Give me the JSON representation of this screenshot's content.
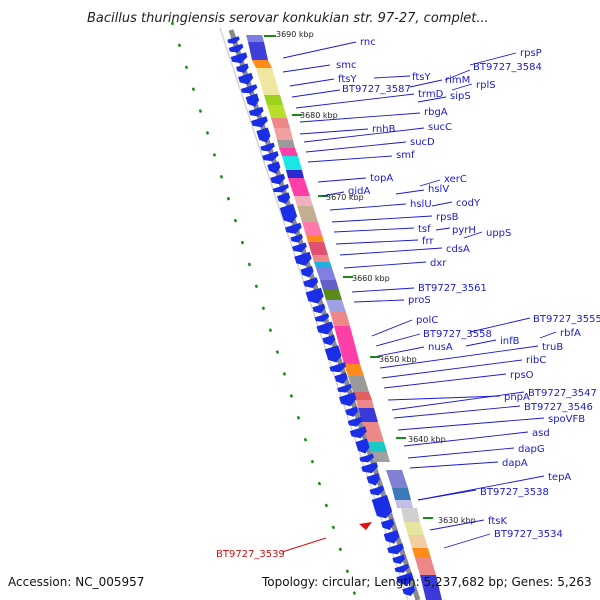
{
  "title": "Bacillus thuringiensis serovar konkukian str. 97-27, complet...",
  "footer": {
    "accession": "Accession: NC_005957",
    "topology": "Topology: circular; Length: 5,237,682 bp; Genes: 5,263"
  },
  "colors": {
    "gene_label": "#1a1ad0",
    "highlight": "#cc1111",
    "tick": "#1a8a1a",
    "backbone": "#888888",
    "arrow": "#1a2ee6"
  },
  "kbp_ticks": [
    "3690 kbp",
    "3680 kbp",
    "3670 kbp",
    "3660 kbp",
    "3650 kbp",
    "3640 kbp",
    "3630 kbp"
  ],
  "genes": [
    "rnc",
    "smc",
    "ftsY",
    "ftsY",
    "BT9727_3587",
    "rimM",
    "rpsP",
    "BT9727_3584",
    "rplS",
    "trmD",
    "sipS",
    "rbgA",
    "rnhB",
    "sucC",
    "sucD",
    "smf",
    "topA",
    "xerC",
    "gidA",
    "hslV",
    "hslU",
    "codY",
    "rpsB",
    "tsf",
    "pyrH",
    "uppS",
    "frr",
    "cdsA",
    "dxr",
    "BT9727_3561",
    "proS",
    "polC",
    "BT9727_3555",
    "BT9727_3558",
    "rbfA",
    "infB",
    "nusA",
    "truB",
    "ribC",
    "rpsO",
    "pnpA",
    "BT9727_3547",
    "BT9727_3546",
    "spoVFB",
    "asd",
    "dapG",
    "dapA",
    "tepA",
    "BT9727_3538",
    "ftsK",
    "BT9727_3534"
  ],
  "highlight_gene": "BT9727_3539"
}
